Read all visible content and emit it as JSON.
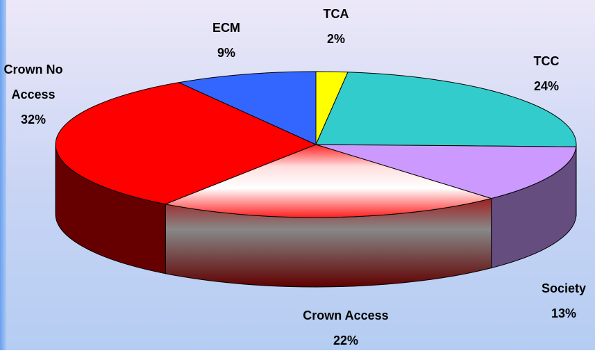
{
  "chart_data": {
    "type": "pie3d",
    "categories": [
      "TCA",
      "TCC",
      "Society",
      "Crown Access",
      "Crown No Access",
      "ECM"
    ],
    "values": [
      2,
      24,
      13,
      22,
      32,
      9
    ],
    "value_labels": [
      "2%",
      "24%",
      "13%",
      "22%",
      "32%",
      "9%"
    ],
    "colors": [
      "#ffff00",
      "#33cccc",
      "#cc99ff",
      "#ff2020",
      "#ff0000",
      "#3366ff"
    ]
  }
}
